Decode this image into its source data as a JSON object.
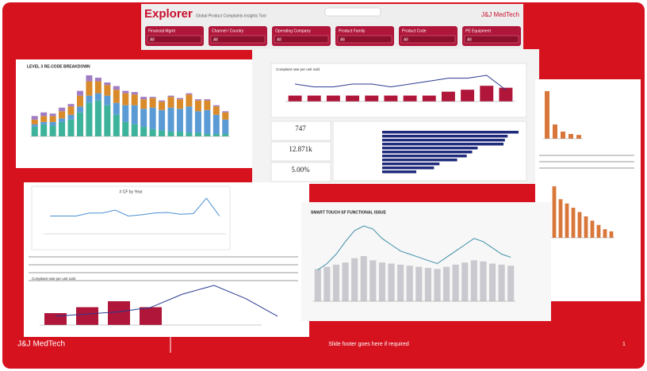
{
  "header": {
    "logo": "Explorer",
    "subtitle": "Global Product Complaints Insights Tool",
    "brand": "J&J MedTech"
  },
  "filters": [
    {
      "label": "Financial Mgmt",
      "value": "All"
    },
    {
      "label": "Channel / Country",
      "value": "All"
    },
    {
      "label": "Operating Company",
      "value": "All"
    },
    {
      "label": "Product Family",
      "value": "All"
    },
    {
      "label": "Product Code",
      "value": "All"
    },
    {
      "label": "PE Equipment",
      "value": "All"
    }
  ],
  "level3": {
    "title": "LEVEL 3 RE-CODE BREAKDOWN",
    "series": [
      {
        "color": "#3cb39a",
        "values": [
          8,
          10,
          9,
          12,
          14,
          20,
          28,
          30,
          26,
          18,
          12,
          10,
          8,
          6,
          5,
          4,
          4,
          3,
          3,
          2,
          2,
          2
        ]
      },
      {
        "color": "#5b9bd5",
        "values": [
          2,
          2,
          3,
          3,
          4,
          5,
          6,
          6,
          8,
          10,
          14,
          16,
          15,
          18,
          17,
          20,
          19,
          22,
          18,
          20,
          16,
          12
        ]
      },
      {
        "color": "#d98a2b",
        "values": [
          4,
          5,
          5,
          6,
          7,
          9,
          12,
          10,
          9,
          11,
          10,
          9,
          8,
          8,
          7,
          9,
          8,
          10,
          9,
          8,
          7,
          6
        ]
      },
      {
        "color": "#a07cc5",
        "values": [
          3,
          3,
          2,
          3,
          2,
          4,
          5,
          3,
          2,
          3,
          2,
          2,
          2,
          1,
          1,
          1,
          1,
          1,
          1,
          1,
          1,
          1
        ]
      }
    ]
  },
  "rate_top": {
    "title": "Complaint rate per unit sold",
    "bar_color": "#b0163a",
    "line_color": "#2b3a8f",
    "bars": [
      3,
      3,
      3,
      3,
      3,
      3,
      3,
      3,
      5,
      6,
      8,
      7
    ],
    "line": [
      6,
      5,
      5,
      6,
      6,
      5,
      6,
      7,
      8,
      8,
      9,
      4
    ]
  },
  "kpis": [
    "747",
    "12.871k",
    "5.00%"
  ],
  "hbar": {
    "color": "#1f2a7a",
    "values": [
      100,
      92,
      90,
      89,
      70,
      66,
      62,
      55,
      42,
      38,
      25
    ]
  },
  "cf_year": {
    "title": "# CF by Year",
    "color": "#4a8fd0",
    "values": [
      3,
      3,
      3,
      3.5,
      3.5,
      4,
      3,
      3.2,
      3.5,
      3.6,
      3.3,
      3.4,
      6,
      3
    ]
  },
  "smart": {
    "title": "SMART TOUCH SF FUNCTIONAL ISSUE",
    "bar_color": "#c9c9cf",
    "line_color": "#3f8fa8",
    "bars": [
      30,
      32,
      34,
      36,
      40,
      42,
      38,
      36,
      35,
      34,
      33,
      32,
      31,
      30,
      32,
      34,
      36,
      38,
      37,
      35,
      34,
      33
    ],
    "line": [
      20,
      24,
      30,
      38,
      45,
      48,
      46,
      40,
      36,
      32,
      30,
      28,
      26,
      24,
      28,
      32,
      36,
      40,
      38,
      34,
      30,
      28
    ]
  },
  "rate_bottom": {
    "title": "Complaint rate per unit sold",
    "bar_color": "#b0163a",
    "line_color": "#2b3a8f",
    "bars": [
      4,
      6,
      8,
      6
    ],
    "line": [
      2,
      2.5,
      3,
      4,
      7,
      9,
      6,
      2
    ]
  },
  "right_bar1": {
    "color": "#d9773a",
    "values": [
      10,
      3,
      1.5,
      1,
      0.8
    ]
  },
  "right_bar2": {
    "color": "#d9773a",
    "values": [
      12,
      9,
      8,
      7,
      6,
      5,
      4,
      3,
      2,
      1.5
    ]
  },
  "footer": {
    "brand": "J&J MedTech",
    "note": "Slide footer goes here if required",
    "page": "1"
  }
}
